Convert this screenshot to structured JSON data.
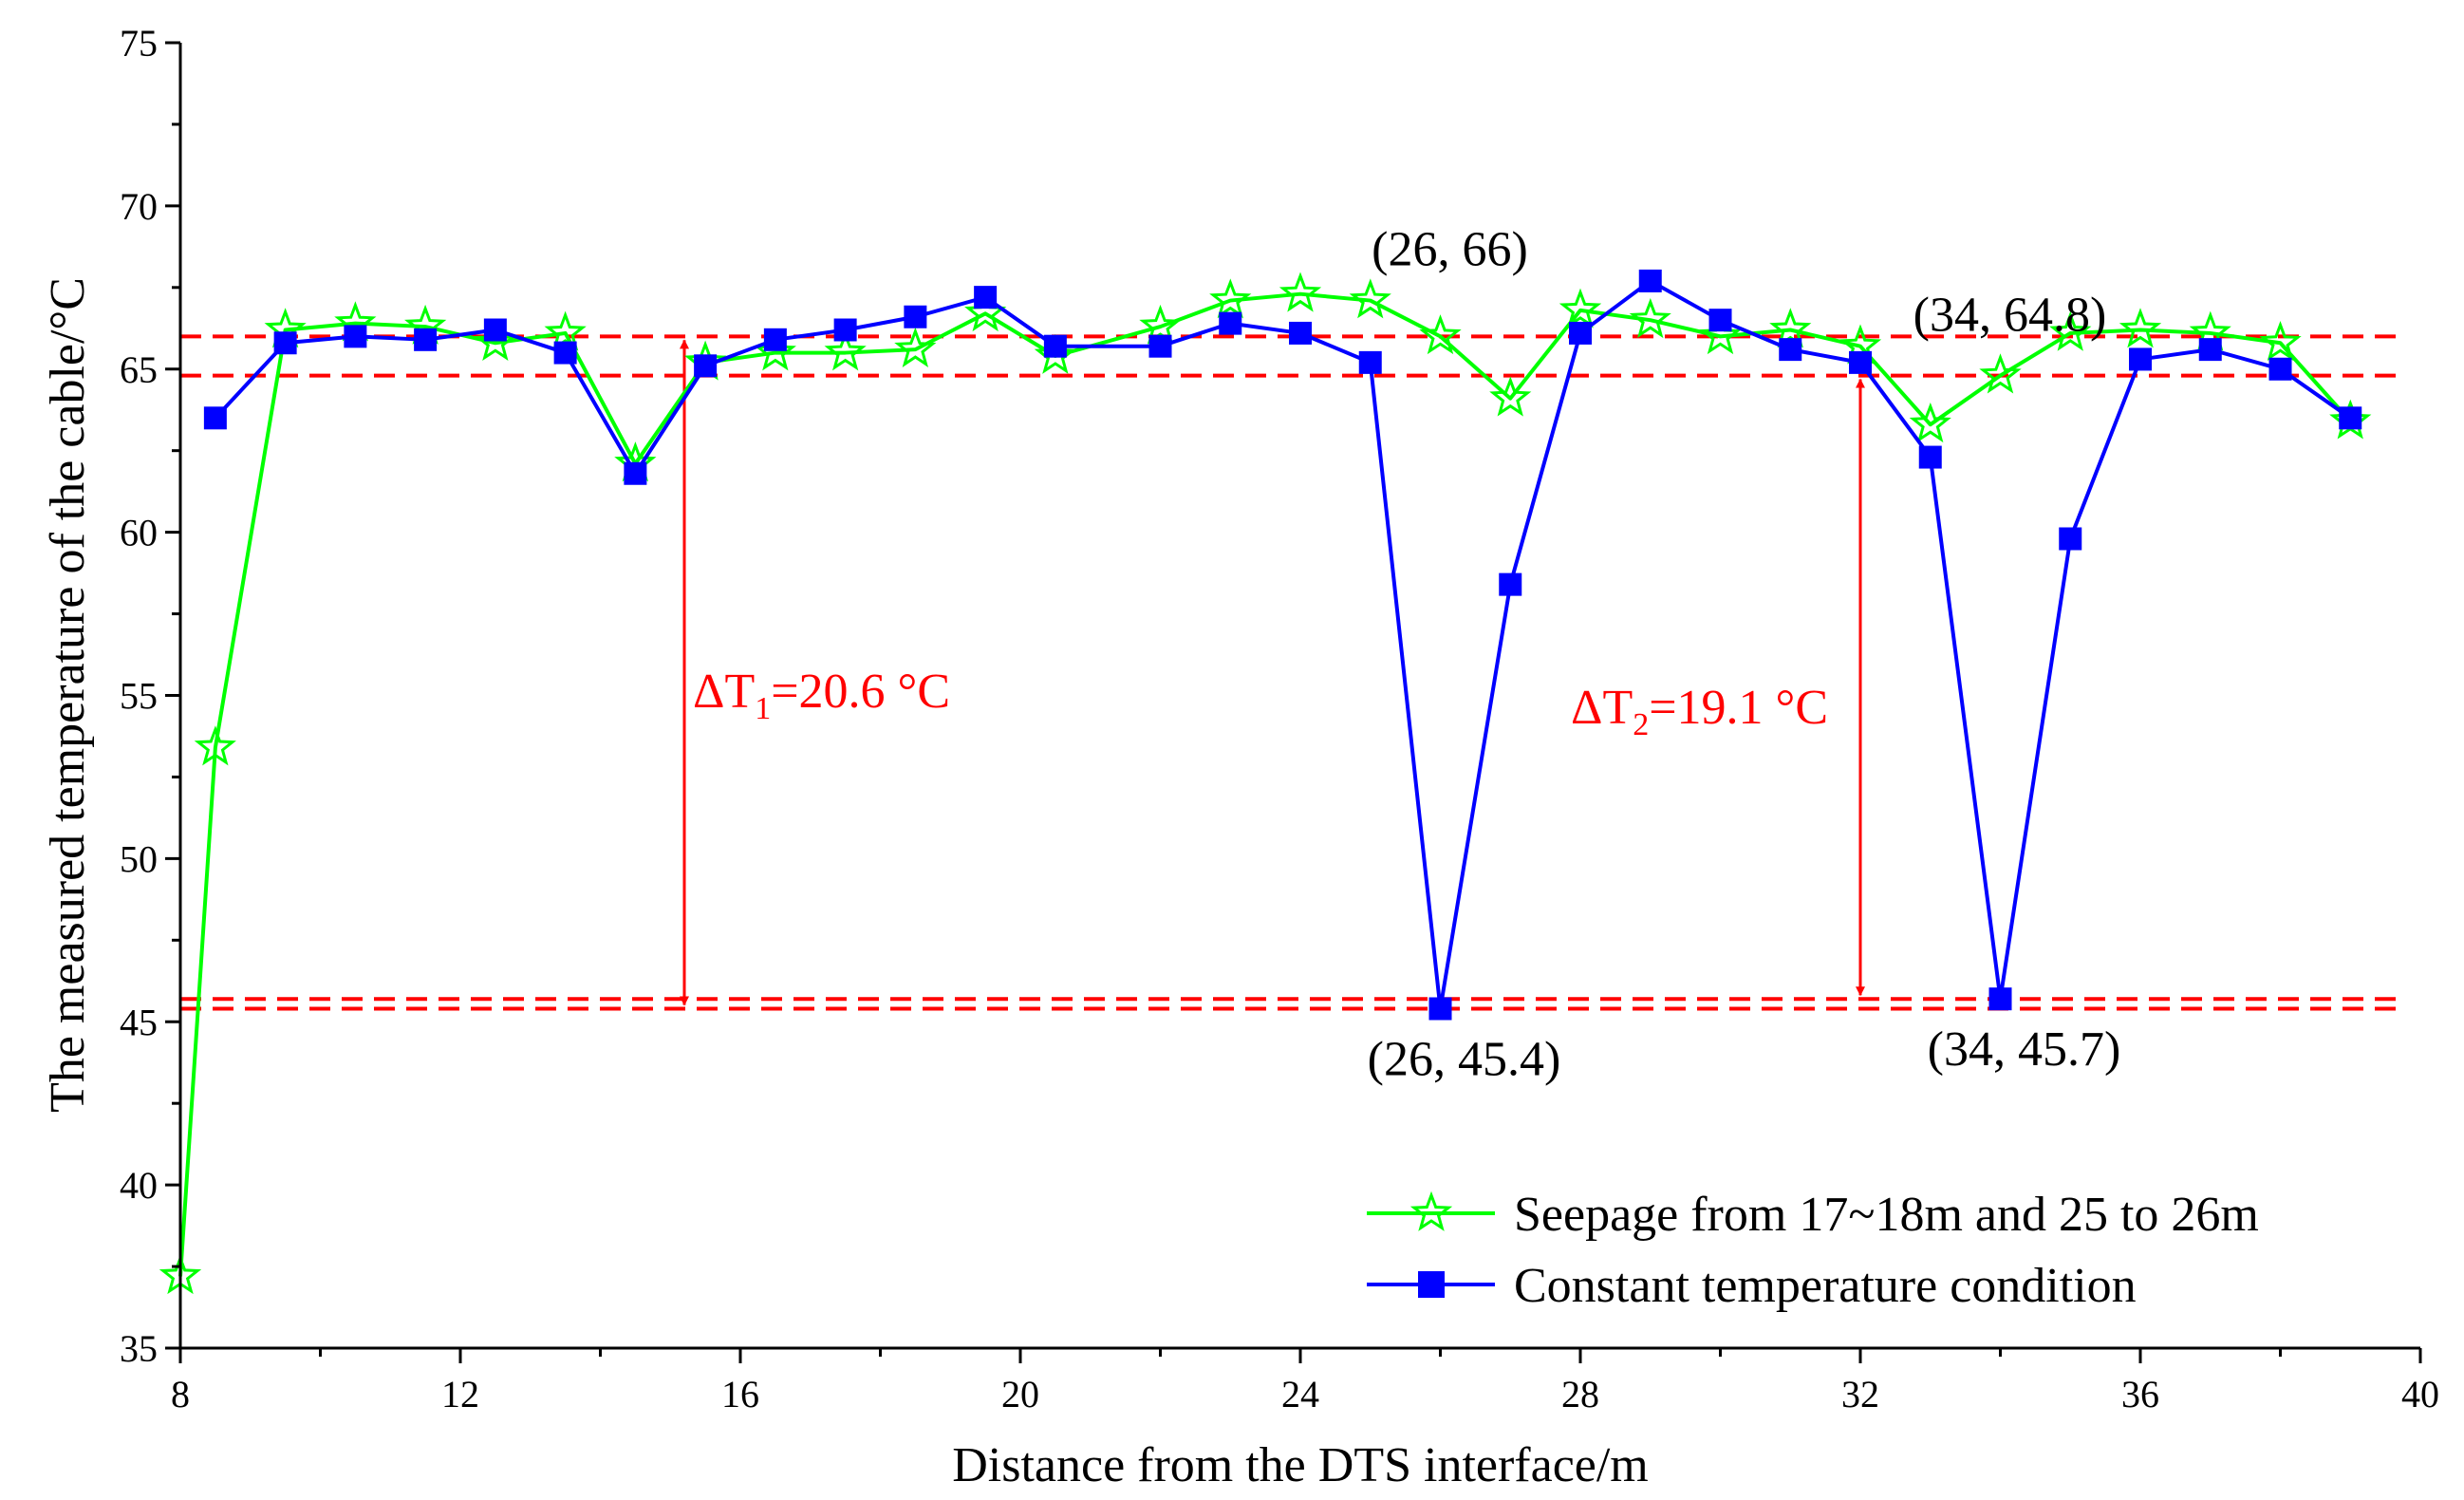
{
  "chart_data": {
    "type": "line",
    "xlabel": "Distance from the DTS interface/m",
    "ylabel": "The measured temperature of the cable/°C",
    "xlim": [
      8,
      40
    ],
    "ylim": [
      35,
      75
    ],
    "xticks": [
      8,
      12,
      16,
      20,
      24,
      28,
      32,
      36,
      40
    ],
    "yticks": [
      35,
      40,
      45,
      50,
      55,
      60,
      65,
      70,
      75
    ],
    "colors": {
      "seepage": "#00ff00",
      "constant": "#0000ff",
      "reference": "#ff0000"
    },
    "series": [
      {
        "name": "Seepage from 17~18m and 25 to 26m",
        "marker": "star",
        "x": [
          8,
          8.5,
          9.5,
          10.5,
          11.5,
          12.5,
          13.5,
          14.5,
          15.5,
          16.5,
          17.5,
          18.5,
          19.5,
          20.5,
          22,
          23,
          24,
          25,
          26,
          27,
          28,
          29,
          30,
          31,
          32,
          33,
          34,
          35,
          36,
          37,
          38,
          39
        ],
        "values": [
          37.2,
          53.4,
          66.2,
          66.4,
          66.3,
          65.8,
          66.1,
          62.1,
          65.2,
          65.5,
          65.5,
          65.6,
          66.7,
          65.4,
          66.3,
          67.1,
          67.3,
          67.1,
          66.0,
          64.1,
          66.8,
          66.5,
          66.0,
          66.2,
          65.7,
          63.3,
          64.8,
          66.1,
          66.2,
          66.1,
          65.8,
          63.4
        ]
      },
      {
        "name": "Constant temperature condition",
        "marker": "square",
        "x": [
          8.5,
          9.5,
          10.5,
          11.5,
          12.5,
          13.5,
          14.5,
          15.5,
          16.5,
          17.5,
          18.5,
          19.5,
          20.5,
          22,
          23,
          24,
          25,
          26,
          27,
          28,
          29,
          30,
          31,
          32,
          33,
          34,
          35,
          36,
          37,
          38,
          39
        ],
        "values": [
          63.5,
          65.8,
          66.0,
          65.9,
          66.2,
          65.5,
          61.8,
          65.1,
          65.9,
          66.2,
          66.6,
          67.2,
          65.7,
          65.7,
          66.4,
          66.1,
          65.2,
          45.4,
          58.4,
          66.1,
          67.7,
          66.5,
          65.6,
          65.2,
          62.3,
          45.7,
          59.8,
          65.3,
          65.6,
          65.0,
          63.5
        ]
      }
    ],
    "reference_lines": [
      66.0,
      64.8,
      45.7,
      45.4
    ],
    "point_labels": [
      {
        "text": "(26, 66)",
        "x": 26,
        "y": 66
      },
      {
        "text": "(34, 64.8)",
        "x": 34,
        "y": 64.8
      },
      {
        "text": "(26, 45.4)",
        "x": 26,
        "y": 45.4
      },
      {
        "text": "(34, 45.7)",
        "x": 34,
        "y": 45.7
      }
    ],
    "delta_annotations": [
      {
        "symbol": "ΔT",
        "sub": "1",
        "rest": "=20.6 °C",
        "x": 15.2,
        "y_top": 66.0,
        "y_bottom": 45.4
      },
      {
        "symbol": "ΔT",
        "sub": "2",
        "rest": "=19.1 °C",
        "x": 32.0,
        "y_top": 64.8,
        "y_bottom": 45.7
      }
    ],
    "legend": {
      "position": "bottom-right"
    }
  }
}
